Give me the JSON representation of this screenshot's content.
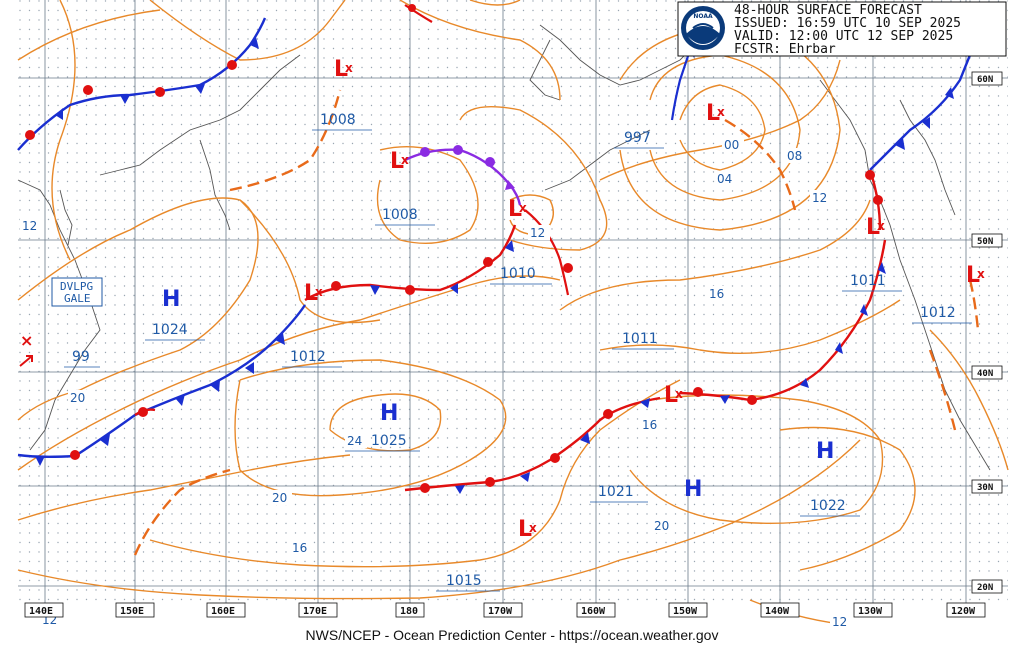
{
  "header": {
    "title": "48-HOUR SURFACE FORECAST",
    "issued": "ISSUED: 16:59 UTC 10 SEP 2025",
    "valid": "VALID:  12:00 UTC 12 SEP 2025",
    "forecaster": "FCSTR:  Ehrbar",
    "logo_text": "NOAA"
  },
  "credit": "NWS/NCEP - Ocean Prediction Center - https://ocean.weather.gov",
  "lat_labels": [
    "60N",
    "50N",
    "40N",
    "30N",
    "20N"
  ],
  "lon_labels": [
    "140E",
    "150E",
    "160E",
    "170E",
    "180",
    "170W",
    "160W",
    "150W",
    "140W",
    "130W",
    "120W"
  ],
  "pressure_centers": [
    {
      "type": "H",
      "value": "1024"
    },
    {
      "type": "H",
      "value": "1025"
    },
    {
      "type": "H",
      "value": "1021"
    },
    {
      "type": "H",
      "value": "1022"
    },
    {
      "type": "L",
      "value": "1008"
    },
    {
      "type": "L",
      "value": "1008"
    },
    {
      "type": "L",
      "value": "997"
    },
    {
      "type": "L",
      "value": "1010"
    },
    {
      "type": "L",
      "value": "1012"
    },
    {
      "type": "L",
      "value": "1011"
    },
    {
      "type": "L",
      "value": "1011"
    },
    {
      "type": "L",
      "value": "1012"
    },
    {
      "type": "L",
      "value": "1015"
    },
    {
      "type": "L",
      "value": "99"
    }
  ],
  "isobar_labels": [
    "12",
    "20",
    "24",
    "20",
    "16",
    "12",
    "16",
    "16",
    "20",
    "12",
    "00",
    "04",
    "08",
    "12",
    "12"
  ],
  "warning": {
    "line1": "DVLPG",
    "line2": "GALE"
  },
  "colors": {
    "isobar": "#e8892a",
    "cold_front": "#1a2fd0",
    "warm_front": "#e01010",
    "occluded": "#8a2be2",
    "trough": "#e86a1a",
    "coast": "#555555",
    "grid": "#6a7a8a"
  }
}
